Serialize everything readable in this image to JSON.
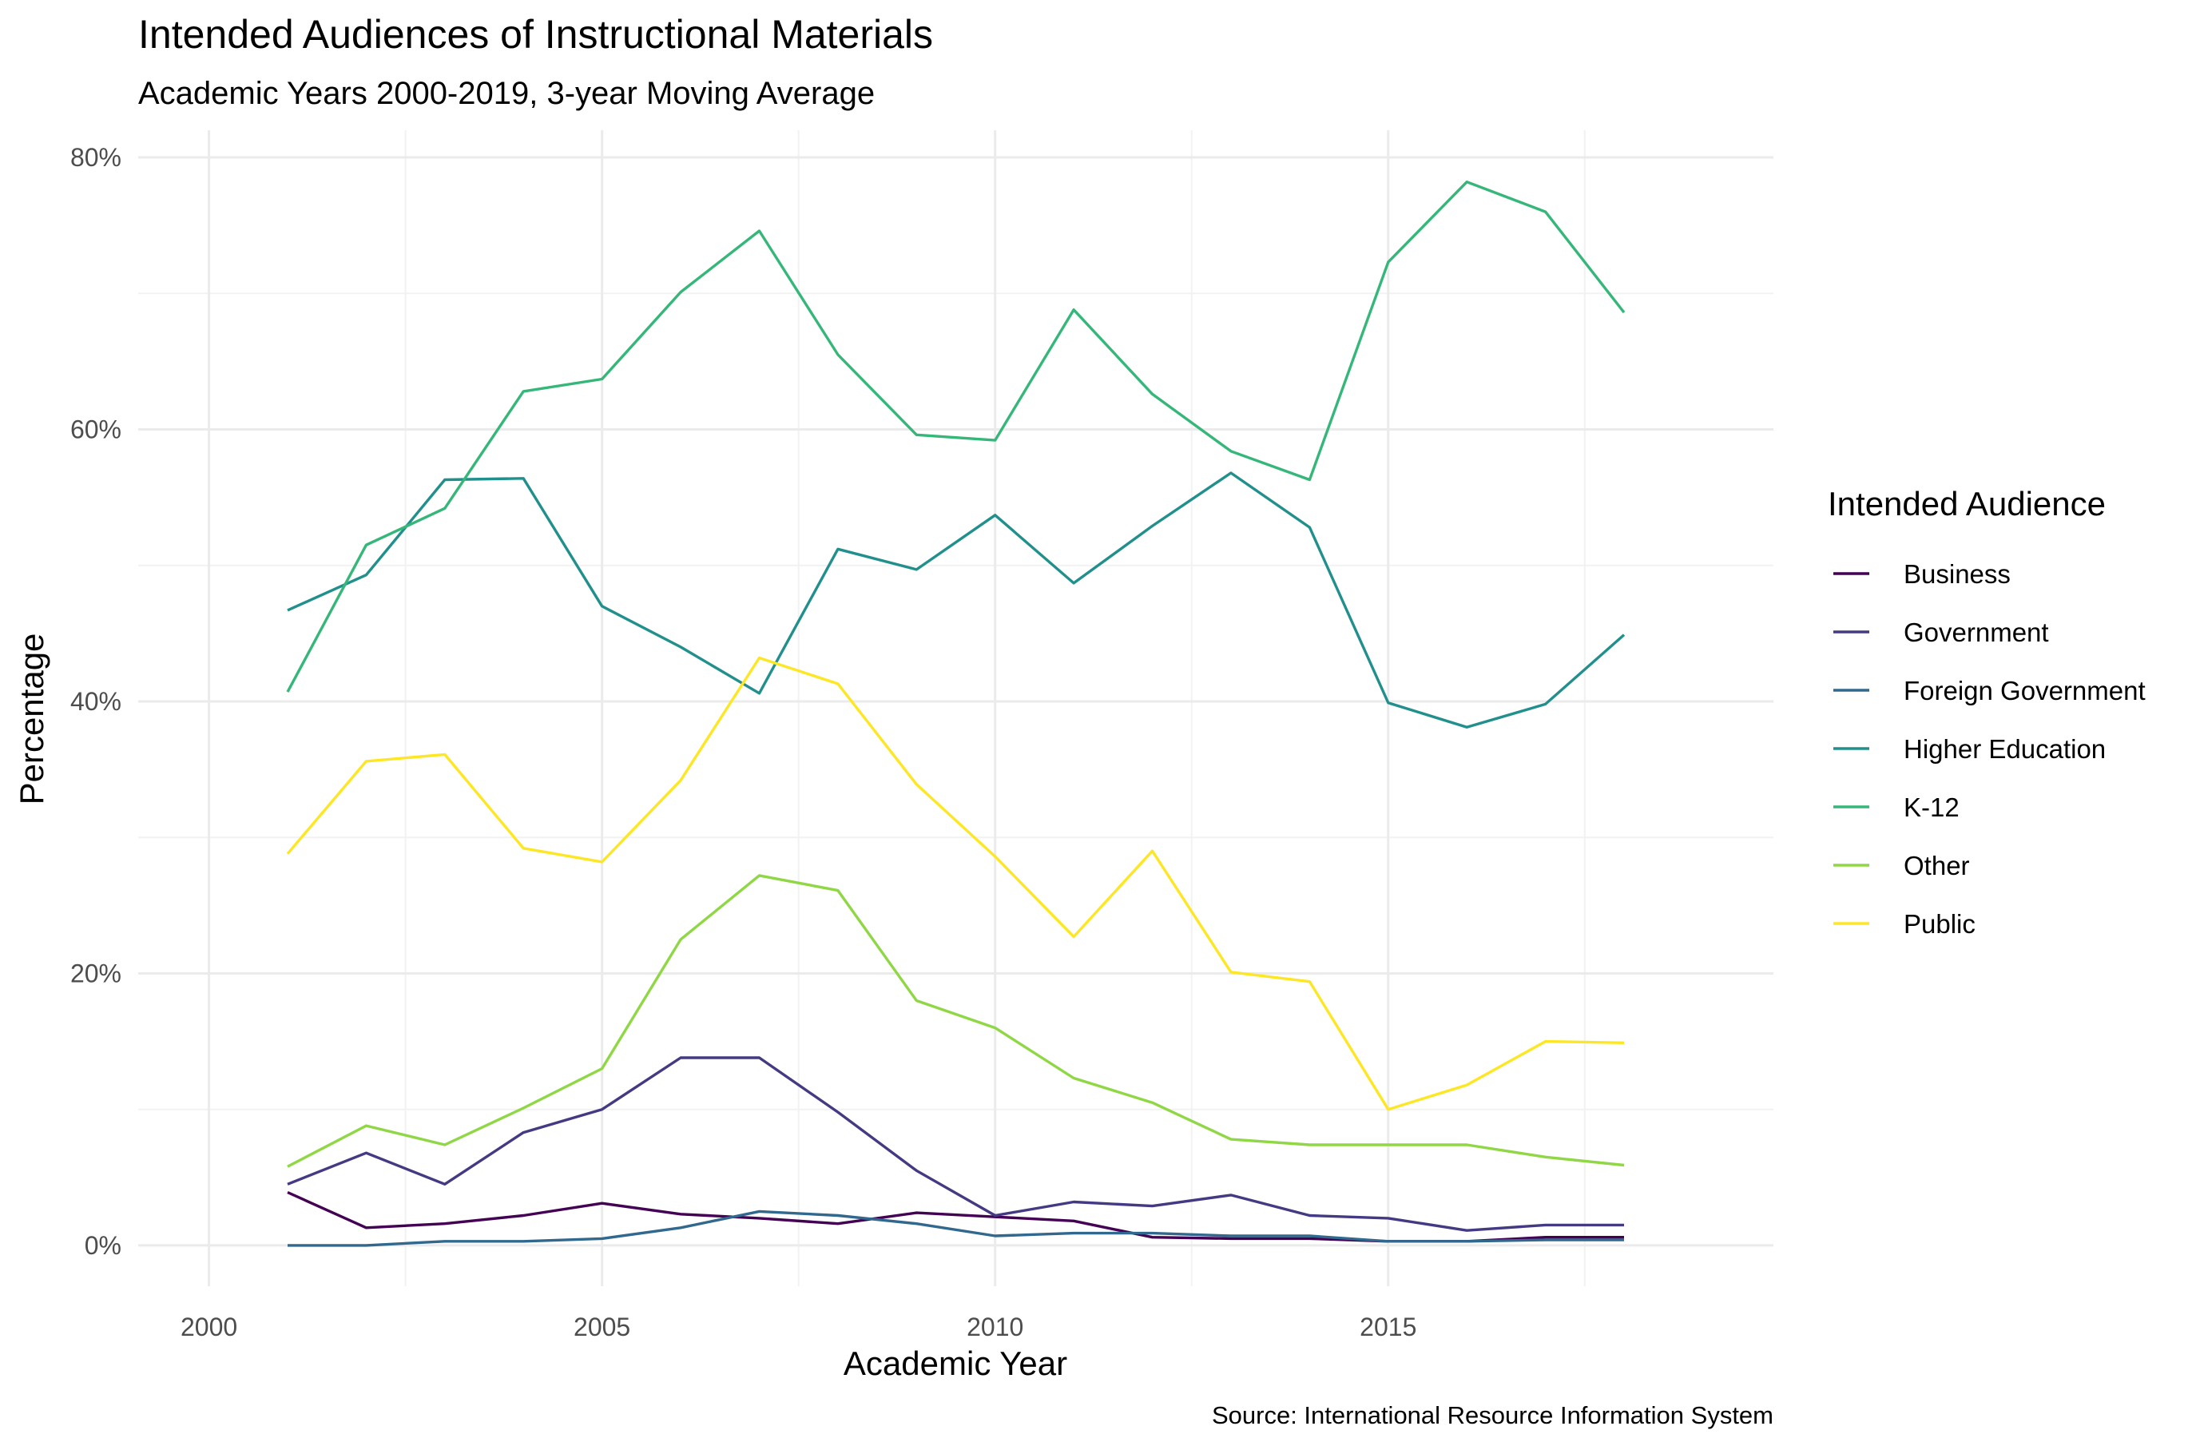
{
  "chart_data": {
    "type": "line",
    "title": "Intended Audiences of Instructional Materials",
    "subtitle": "Academic Years 2000-2019, 3-year Moving Average",
    "xlabel": "Academic Year",
    "ylabel": "Percentage",
    "caption": "Source: International Resource Information System",
    "legend_title": "Intended Audience",
    "legend_position": "right",
    "grid": true,
    "xlim": [
      1999.1,
      2019.9
    ],
    "ylim": [
      -0.03,
      0.82
    ],
    "x_major_ticks": [
      2000,
      2005,
      2010,
      2015
    ],
    "x_minor_ticks": [
      2002.5,
      2007.5,
      2012.5,
      2017.5
    ],
    "x_tick_labels": [
      "2000",
      "2005",
      "2010",
      "2015"
    ],
    "y_major_ticks": [
      0,
      0.2,
      0.4,
      0.6,
      0.8
    ],
    "y_minor_ticks": [
      0.1,
      0.3,
      0.5,
      0.7
    ],
    "y_tick_labels": [
      "0%",
      "20%",
      "40%",
      "60%",
      "80%"
    ],
    "x": [
      2001,
      2002,
      2003,
      2004,
      2005,
      2006,
      2007,
      2008,
      2009,
      2010,
      2011,
      2012,
      2013,
      2014,
      2015,
      2016,
      2017,
      2018
    ],
    "series": [
      {
        "name": "Business",
        "color": "#440154",
        "values": [
          0.039,
          0.013,
          0.016,
          0.022,
          0.031,
          0.023,
          0.02,
          0.016,
          0.024,
          0.021,
          0.018,
          0.006,
          0.005,
          0.005,
          0.003,
          0.003,
          0.006,
          0.006
        ]
      },
      {
        "name": "Government",
        "color": "#443A83",
        "values": [
          0.045,
          0.068,
          0.045,
          0.083,
          0.1,
          0.138,
          0.138,
          0.098,
          0.055,
          0.022,
          0.032,
          0.029,
          0.037,
          0.022,
          0.02,
          0.011,
          0.015,
          0.015
        ]
      },
      {
        "name": "Foreign Government",
        "color": "#31688E",
        "values": [
          0.0,
          0.0,
          0.003,
          0.003,
          0.005,
          0.013,
          0.025,
          0.022,
          0.016,
          0.007,
          0.009,
          0.009,
          0.007,
          0.007,
          0.003,
          0.003,
          0.004,
          0.004
        ]
      },
      {
        "name": "Higher Education",
        "color": "#21908C",
        "values": [
          0.467,
          0.493,
          0.563,
          0.564,
          0.47,
          0.44,
          0.406,
          0.512,
          0.497,
          0.537,
          0.487,
          0.529,
          0.568,
          0.528,
          0.399,
          0.381,
          0.398,
          0.449
        ]
      },
      {
        "name": "K-12",
        "color": "#35B779",
        "values": [
          0.407,
          0.515,
          0.542,
          0.628,
          0.637,
          0.701,
          0.746,
          0.655,
          0.596,
          0.592,
          0.688,
          0.626,
          0.584,
          0.563,
          0.723,
          0.782,
          0.76,
          0.686
        ]
      },
      {
        "name": "Other",
        "color": "#8FD744",
        "values": [
          0.058,
          0.088,
          0.074,
          0.101,
          0.13,
          0.225,
          0.272,
          0.261,
          0.18,
          0.16,
          0.123,
          0.105,
          0.078,
          0.074,
          0.074,
          0.074,
          0.065,
          0.059
        ]
      },
      {
        "name": "Public",
        "color": "#FDE725",
        "values": [
          0.288,
          0.356,
          0.361,
          0.292,
          0.282,
          0.342,
          0.432,
          0.413,
          0.339,
          0.286,
          0.227,
          0.29,
          0.201,
          0.194,
          0.1,
          0.118,
          0.15,
          0.149
        ]
      }
    ]
  }
}
